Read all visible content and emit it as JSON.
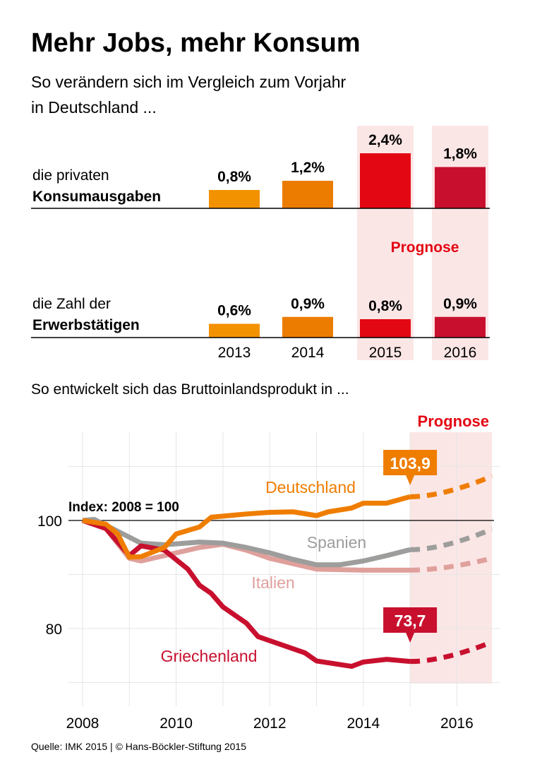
{
  "title": "Mehr Jobs, mehr Konsum",
  "subtitle_line1": "So verändern sich im Vergleich zum Vorjahr",
  "subtitle_line2": "in Deutschland ...",
  "source": "Quelle: IMK 2015 | © Hans-Böckler-Stiftung 2015",
  "chart_data": [
    {
      "type": "bar",
      "categories": [
        "2013",
        "2014",
        "2015",
        "2016"
      ],
      "forecast_label": "Prognose",
      "forecast_categories": [
        "2015",
        "2016"
      ],
      "series": [
        {
          "name_line1": "die privaten",
          "name_line2": "Konsumausgaben",
          "values": [
            0.8,
            1.2,
            2.4,
            1.8
          ],
          "labels": [
            "0,8%",
            "1,2%",
            "2,4%",
            "1,8%"
          ]
        },
        {
          "name_line1": "die Zahl der",
          "name_line2": "Erwerbstätigen",
          "values": [
            0.6,
            0.9,
            0.8,
            0.9
          ],
          "labels": [
            "0,6%",
            "0,9%",
            "0,8%",
            "0,9%"
          ]
        }
      ],
      "colors": [
        "#f39200",
        "#ec7c00",
        "#e30613",
        "#c8102e"
      ],
      "forecast_shade": "#fbe6e6"
    },
    {
      "type": "line",
      "title": "So entwickelt sich das Bruttoinlandsprodukt in ...",
      "annotation": "Index: 2008 = 100",
      "forecast_label": "Prognose",
      "forecast_range": [
        2015,
        2016.75
      ],
      "xlim": [
        2008,
        2016.9
      ],
      "ylim": [
        70,
        112
      ],
      "x_ticks": [
        "2008",
        "2010",
        "2012",
        "2014",
        "2016"
      ],
      "y_ticks": [
        "80",
        "100"
      ],
      "grid": true,
      "series": [
        {
          "name": "Deutschland",
          "color": "#ef7d00",
          "value_label": "103,9",
          "x": [
            2008,
            2008.5,
            2008.75,
            2009,
            2009.25,
            2009.75,
            2010,
            2010.5,
            2010.75,
            2011.25,
            2011.5,
            2012,
            2012.5,
            2013,
            2013.25,
            2013.75,
            2014,
            2014.5,
            2015
          ],
          "y": [
            100,
            99.3,
            97.5,
            93.2,
            93.3,
            95,
            97.5,
            98.8,
            100.6,
            101,
            101.2,
            101.5,
            101.6,
            100.9,
            101.6,
            102.3,
            103.2,
            103.2,
            104.4
          ],
          "forecast_x": [
            2015,
            2016.75
          ],
          "forecast_y": [
            104.4,
            108.2
          ]
        },
        {
          "name": "Spanien",
          "color": "#9d9d9c",
          "value_label": "",
          "x": [
            2008,
            2008.25,
            2008.75,
            2009.25,
            2009.75,
            2010.5,
            2011,
            2011.5,
            2012,
            2012.5,
            2013,
            2013.5,
            2014,
            2014.5,
            2015
          ],
          "y": [
            100,
            100.2,
            98,
            95.8,
            95.5,
            96,
            95.8,
            95,
            94,
            92.8,
            91.8,
            91.8,
            92.5,
            93.5,
            94.6
          ],
          "forecast_x": [
            2015,
            2016.75
          ],
          "forecast_y": [
            94.6,
            98.4
          ]
        },
        {
          "name": "Italien",
          "color": "#dfa09c",
          "value_label": "",
          "x": [
            2008,
            2008.5,
            2009,
            2009.25,
            2009.75,
            2010.5,
            2011,
            2011.5,
            2012,
            2012.5,
            2013,
            2014,
            2015
          ],
          "y": [
            100,
            98.5,
            93,
            92.5,
            93.5,
            95,
            95.6,
            94.5,
            93,
            92,
            91,
            90.8,
            90.8
          ],
          "forecast_x": [
            2015,
            2016.75
          ],
          "forecast_y": [
            90.8,
            93
          ]
        },
        {
          "name": "Griechenland",
          "color": "#c8102e",
          "value_label": "73,7",
          "x": [
            2008,
            2008.5,
            2009,
            2009.25,
            2009.75,
            2010.25,
            2010.5,
            2010.75,
            2011,
            2011.5,
            2011.75,
            2012.25,
            2012.75,
            2013,
            2013.75,
            2014,
            2014.5,
            2015
          ],
          "y": [
            100,
            98.5,
            93.5,
            95.3,
            94.5,
            91,
            88,
            86.5,
            84,
            81,
            78.5,
            77,
            75.5,
            74,
            73,
            73.8,
            74.3,
            73.9
          ],
          "forecast_x": [
            2015,
            2016.75
          ],
          "forecast_y": [
            73.9,
            77.5
          ]
        }
      ]
    }
  ]
}
